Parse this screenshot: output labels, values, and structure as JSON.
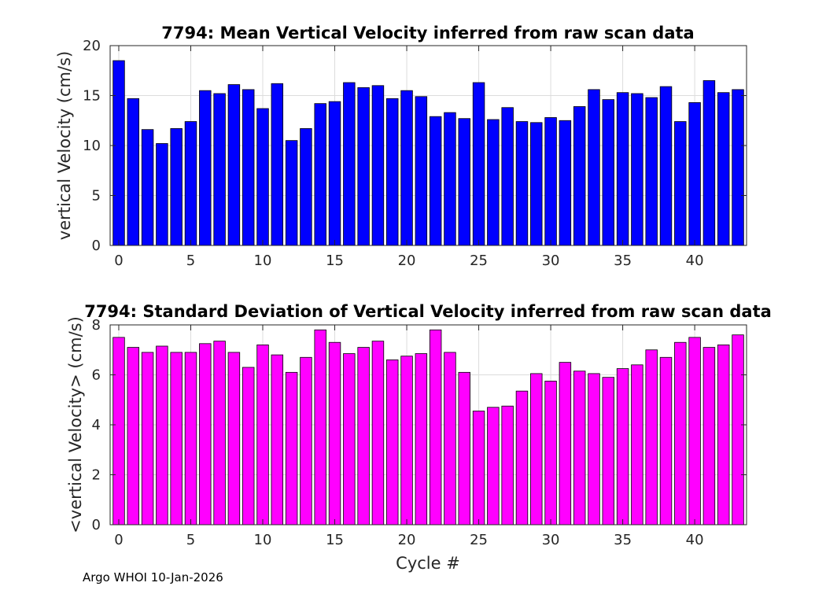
{
  "chart_data": [
    {
      "type": "bar",
      "title": "7794: Mean Vertical Velocity inferred from raw scan data",
      "ylabel": "vertical Velocity (cm/s)",
      "xlabel": "",
      "x": [
        0,
        1,
        2,
        3,
        4,
        5,
        6,
        7,
        8,
        9,
        10,
        11,
        12,
        13,
        14,
        15,
        16,
        17,
        18,
        19,
        20,
        21,
        22,
        23,
        24,
        25,
        26,
        27,
        28,
        29,
        30,
        31,
        32,
        33,
        34,
        35,
        36,
        37,
        38,
        39,
        40,
        41,
        42,
        43
      ],
      "values": [
        18.5,
        14.7,
        11.6,
        10.2,
        11.7,
        12.4,
        15.5,
        15.2,
        16.1,
        15.6,
        13.7,
        16.2,
        10.5,
        11.7,
        14.2,
        14.4,
        16.3,
        15.8,
        16.0,
        14.7,
        15.5,
        14.9,
        12.9,
        13.3,
        12.7,
        16.3,
        12.6,
        13.8,
        12.4,
        12.3,
        12.8,
        12.5,
        13.9,
        15.6,
        14.6,
        15.3,
        15.2,
        14.8,
        15.9,
        12.4,
        14.3,
        16.5,
        15.3,
        15.6
      ],
      "xlim": [
        -0.6,
        43.6
      ],
      "ylim": [
        0,
        20
      ],
      "xticks": [
        0,
        5,
        10,
        15,
        20,
        25,
        30,
        35,
        40
      ],
      "yticks": [
        0,
        5,
        10,
        15,
        20
      ],
      "grid": true,
      "color": "#0000ff"
    },
    {
      "type": "bar",
      "title": "7794: Standard Deviation of Vertical Velocity inferred from raw scan data",
      "ylabel": "<vertical Velocity> (cm/s)",
      "xlabel": "Cycle #",
      "x": [
        0,
        1,
        2,
        3,
        4,
        5,
        6,
        7,
        8,
        9,
        10,
        11,
        12,
        13,
        14,
        15,
        16,
        17,
        18,
        19,
        20,
        21,
        22,
        23,
        24,
        25,
        26,
        27,
        28,
        29,
        30,
        31,
        32,
        33,
        34,
        35,
        36,
        37,
        38,
        39,
        40,
        41,
        42,
        43
      ],
      "values": [
        7.5,
        7.1,
        6.9,
        7.15,
        6.9,
        6.9,
        7.25,
        7.35,
        6.9,
        6.3,
        7.2,
        6.8,
        6.1,
        6.7,
        7.8,
        7.3,
        6.85,
        7.1,
        7.35,
        6.6,
        6.75,
        6.85,
        7.8,
        6.9,
        6.1,
        4.55,
        4.7,
        4.75,
        5.35,
        6.05,
        5.75,
        6.5,
        6.15,
        6.05,
        5.9,
        6.25,
        6.4,
        7.0,
        6.7,
        7.3,
        7.5,
        7.1,
        7.2,
        7.6
      ],
      "xlim": [
        -0.6,
        43.6
      ],
      "ylim": [
        0,
        8
      ],
      "xticks": [
        0,
        5,
        10,
        15,
        20,
        25,
        30,
        35,
        40
      ],
      "yticks": [
        0,
        2,
        4,
        6,
        8
      ],
      "grid": true,
      "color": "#ff00ff"
    }
  ],
  "footer": "Argo WHOI 10-Jan-2026"
}
